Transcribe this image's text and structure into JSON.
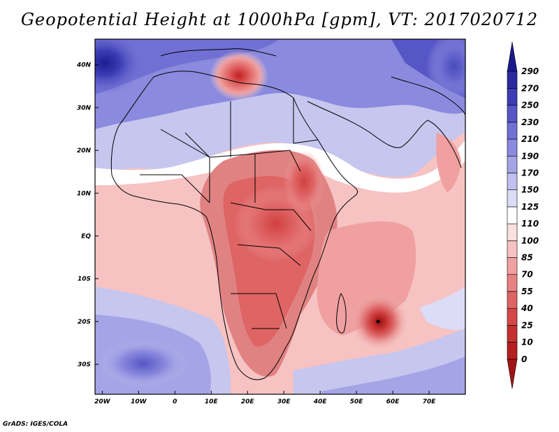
{
  "title": "Geopotential Height at 1000hPa [gpm], VT: 2017020712",
  "credit": "GrADS: IGES/COLA",
  "colors": {
    "deep_blue": "#2f2fa6",
    "blue": "#7070d8",
    "light_blue": "#c6c6ef",
    "white": "#ffffff",
    "light_red": "#f4c4c4",
    "red": "#e07272",
    "deep_red": "#c01e1e",
    "land_outline": "#000000"
  },
  "chart_data": {
    "type": "heatmap",
    "title": "Geopotential Height at 1000hPa [gpm], VT: 2017020712",
    "variable": "Geopotential Height at 1000hPa",
    "units": "gpm",
    "valid_time": "2017020712",
    "x_axis": {
      "range": [
        -22,
        80
      ],
      "ticks": [
        -20,
        -10,
        0,
        10,
        20,
        30,
        40,
        50,
        60,
        70
      ],
      "tick_labels": [
        "20W",
        "10W",
        "0",
        "10E",
        "20E",
        "30E",
        "40E",
        "50E",
        "60E",
        "70E"
      ]
    },
    "y_axis": {
      "range": [
        -37,
        46
      ],
      "ticks": [
        40,
        30,
        20,
        10,
        0,
        -10,
        -20,
        -30
      ],
      "tick_labels": [
        "40N",
        "30N",
        "20N",
        "10N",
        "EQ",
        "10S",
        "20S",
        "30S"
      ]
    },
    "colorbar": {
      "levels": [
        "0",
        "10",
        "25",
        "40",
        "55",
        "70",
        "85",
        "100",
        "110",
        "125",
        "150",
        "170",
        "190",
        "210",
        "230",
        "250",
        "270",
        "290"
      ],
      "colors": [
        "#a01414",
        "#b42020",
        "#c43030",
        "#d44848",
        "#df6464",
        "#e88282",
        "#f0a0a0",
        "#f6c2c2",
        "#fbe0e0",
        "#ffffff",
        "#dcdcf6",
        "#c0c0ee",
        "#a4a4e6",
        "#8a8ade",
        "#7070d4",
        "#5656c6",
        "#3c3cb4",
        "#2a2aa0",
        "#1a1a8c"
      ]
    },
    "features": [
      {
        "label": "low-center-mediterranean",
        "lon": 17,
        "lat": 36,
        "value": 20
      },
      {
        "label": "low-center-mascarene",
        "lon": 57,
        "lat": -20,
        "value": 10
      },
      {
        "label": "high-center-azores",
        "lon": -20,
        "lat": 40,
        "value": 270
      },
      {
        "label": "high-center-south-atlantic",
        "lon": -10,
        "lat": -30,
        "value": 210
      }
    ]
  }
}
